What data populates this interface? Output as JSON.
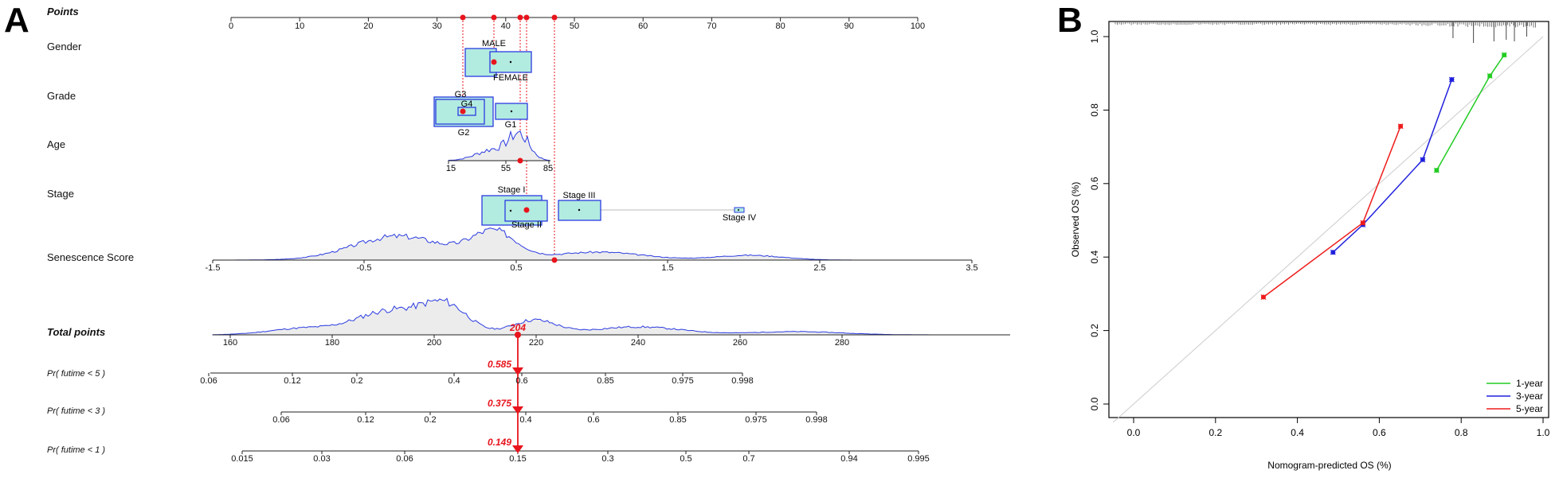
{
  "panel_a": {
    "label": "A",
    "rows": {
      "points": "Points",
      "gender": "Gender",
      "grade": "Grade",
      "age": "Age",
      "stage": "Stage",
      "senescence": "Senescence Score",
      "total": "Total points",
      "pr5": "Pr( futime < 5 )",
      "pr3": "Pr( futime < 3 )",
      "pr1": "Pr( futime < 1 )"
    },
    "points_ticks": [
      "0",
      "10",
      "20",
      "30",
      "40",
      "50",
      "60",
      "70",
      "80",
      "90",
      "100"
    ],
    "gender_labels": [
      "MALE",
      "FEMALE"
    ],
    "grade_labels": [
      "G3",
      "G4",
      "G2",
      "G1"
    ],
    "age_ticks": [
      "15",
      "55",
      "85"
    ],
    "stage_labels": [
      "Stage I",
      "Stage II",
      "Stage III",
      "Stage IV"
    ],
    "senescence_ticks": [
      "-1.5",
      "-0.5",
      "0.5",
      "1.5",
      "2.5",
      "3.5"
    ],
    "total_ticks": [
      "160",
      "180",
      "200",
      "220",
      "240",
      "260",
      "280"
    ],
    "total_value": "204",
    "pr5_ticks": [
      "0.06",
      "0.12",
      "0.2",
      "0.4",
      "0.6",
      "0.85",
      "0.975",
      "0.998"
    ],
    "pr5_value": "0.585",
    "pr3_ticks": [
      "0.06",
      "0.12",
      "0.2",
      "0.4",
      "0.6",
      "0.85",
      "0.975",
      "0.998"
    ],
    "pr3_value": "0.375",
    "pr1_ticks": [
      "0.015",
      "0.03",
      "0.06",
      "0.15",
      "0.3",
      "0.5",
      "0.7",
      "0.94",
      "0.995"
    ],
    "pr1_value": "0.149",
    "marker_color": "#e8141c",
    "box_fill": "#b2ebe0",
    "box_stroke": "#2b3be0",
    "density_line": "#2b3be0",
    "density_fill": "#ececec"
  },
  "chart_data": [
    {
      "type": "nomogram",
      "title": "",
      "points_axis": {
        "range": [
          0,
          100
        ]
      },
      "selected_points": [
        33,
        38,
        42,
        43,
        47
      ],
      "total_points": {
        "range": [
          155,
          280
        ],
        "value": 204
      },
      "predictions": [
        {
          "name": "Pr( futime < 5 )",
          "value": 0.585
        },
        {
          "name": "Pr( futime < 3 )",
          "value": 0.375
        },
        {
          "name": "Pr( futime < 1 )",
          "value": 0.149
        }
      ]
    },
    {
      "type": "line",
      "title": "",
      "xlabel": "Nomogram-predicted OS (%)",
      "ylabel": "Observed OS (%)",
      "xlim": [
        0,
        1
      ],
      "ylim": [
        0,
        1
      ],
      "xticks": [
        "0.0",
        "0.2",
        "0.4",
        "0.6",
        "0.8",
        "1.0"
      ],
      "yticks": [
        "0.0",
        "0.2",
        "0.4",
        "0.6",
        "0.8",
        "1.0"
      ],
      "legend_position": "bottom-right",
      "series": [
        {
          "name": "1-year",
          "color": "#22cc22",
          "x": [
            0.74,
            0.87,
            0.905
          ],
          "y": [
            0.636,
            0.893,
            0.95
          ]
        },
        {
          "name": "3-year",
          "color": "#2020dd",
          "x": [
            0.487,
            0.56,
            0.706,
            0.777
          ],
          "y": [
            0.413,
            0.488,
            0.665,
            0.883
          ]
        },
        {
          "name": "5-year",
          "color": "#ee1c1c",
          "x": [
            0.317,
            0.56,
            0.652
          ],
          "y": [
            0.291,
            0.493,
            0.756
          ]
        }
      ]
    }
  ]
}
